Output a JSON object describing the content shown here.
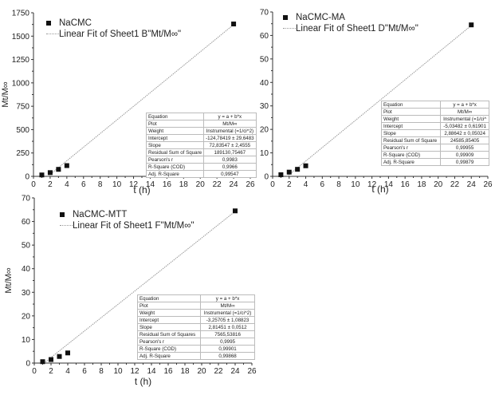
{
  "chart_data": [
    {
      "type": "scatter",
      "id": "nacmc",
      "xlabel": "t (h)",
      "ylabel": "Mt/M∞",
      "xlim": [
        0,
        26
      ],
      "ylim": [
        0,
        1750
      ],
      "xticks": [
        0,
        2,
        4,
        6,
        8,
        10,
        12,
        14,
        16,
        18,
        20,
        22,
        24,
        26
      ],
      "yticks": [
        0,
        250,
        500,
        750,
        1000,
        1250,
        1500,
        1750
      ],
      "series": [
        {
          "name": "NaCMC",
          "x": [
            1,
            2,
            3,
            4,
            24
          ],
          "y": [
            15,
            40,
            75,
            115,
            1630
          ]
        }
      ],
      "fit": {
        "name": "Linear Fit of Sheet1 B\"Mt/M∞\"",
        "a": -124.78419,
        "b": 72.83547
      },
      "table": [
        [
          "Equation",
          "y = a + b*x"
        ],
        [
          "Plot",
          "Mt/M∞"
        ],
        [
          "Weight",
          "Instrumental (=1/ci^2)"
        ],
        [
          "Intercept",
          "-124,78419 ± 29,6483"
        ],
        [
          "Slope",
          "72,83547 ± 2,4555"
        ],
        [
          "Residual Sum of Square",
          "189130,75467"
        ],
        [
          "Pearson's r",
          "0,9983"
        ],
        [
          "R-Square (COD)",
          "0,9966"
        ],
        [
          "Adj. R-Square",
          "0,99547"
        ]
      ]
    },
    {
      "type": "scatter",
      "id": "nacmc-ma",
      "xlabel": "t (h)",
      "ylabel": "Mt/M∞",
      "xlim": [
        0,
        26
      ],
      "ylim": [
        0,
        70
      ],
      "xticks": [
        0,
        2,
        4,
        6,
        8,
        10,
        12,
        14,
        16,
        18,
        20,
        22,
        24,
        26
      ],
      "yticks": [
        0,
        10,
        20,
        30,
        40,
        50,
        60,
        70
      ],
      "series": [
        {
          "name": "NaCMC-MA",
          "x": [
            1,
            2,
            3,
            4,
            24
          ],
          "y": [
            0.7,
            1.8,
            3.0,
            4.5,
            64.5
          ]
        }
      ],
      "fit": {
        "name": "Linear Fit of Sheet1 D\"Mt/M∞\"",
        "a": -5.03482,
        "b": 2.88642
      },
      "table": [
        [
          "Equation",
          "y = a + b*x"
        ],
        [
          "Plot",
          "Mt/M∞"
        ],
        [
          "Weight",
          "Instrumental (=1/ci^"
        ],
        [
          "Intercept",
          "-5,03482 ± 0,61901"
        ],
        [
          "Slope",
          "2,88642 ± 0,05024"
        ],
        [
          "Residual Sum of Square",
          "24585,85405"
        ],
        [
          "Pearson's r",
          "0,99955"
        ],
        [
          "R-Square (COD)",
          "0,99909"
        ],
        [
          "Adj. R-Square",
          "0,99879"
        ]
      ]
    },
    {
      "type": "scatter",
      "id": "nacmc-mtt",
      "xlabel": "t (h)",
      "ylabel": "Mt/M∞",
      "xlim": [
        0,
        26
      ],
      "ylim": [
        0,
        70
      ],
      "xticks": [
        0,
        2,
        4,
        6,
        8,
        10,
        12,
        14,
        16,
        18,
        20,
        22,
        24,
        26
      ],
      "yticks": [
        0,
        10,
        20,
        30,
        40,
        50,
        60,
        70
      ],
      "series": [
        {
          "name": "NaCMC-MTT",
          "x": [
            1,
            2,
            3,
            4,
            24
          ],
          "y": [
            0.6,
            1.5,
            2.8,
            4.3,
            64.5
          ]
        }
      ],
      "fit": {
        "name": "Linear Fit of Sheet1 F\"Mt/M∞\"",
        "a": -3.25705,
        "b": 2.81451
      },
      "table": [
        [
          "Equation",
          "y = a + b*x"
        ],
        [
          "Plot",
          "Mt/M∞"
        ],
        [
          "Weight",
          "Instrumental (=1/ci^2)"
        ],
        [
          "Intercept",
          "-3,25705 ± 1,08823"
        ],
        [
          "Slope",
          "2,81451 ± 0,0512"
        ],
        [
          "Residual Sum of Squares",
          "7565,53816"
        ],
        [
          "Pearson's r",
          "0,9995"
        ],
        [
          "R-Square (COD)",
          "0,99901"
        ],
        [
          "Adj. R-Square",
          "0,99868"
        ]
      ]
    }
  ]
}
